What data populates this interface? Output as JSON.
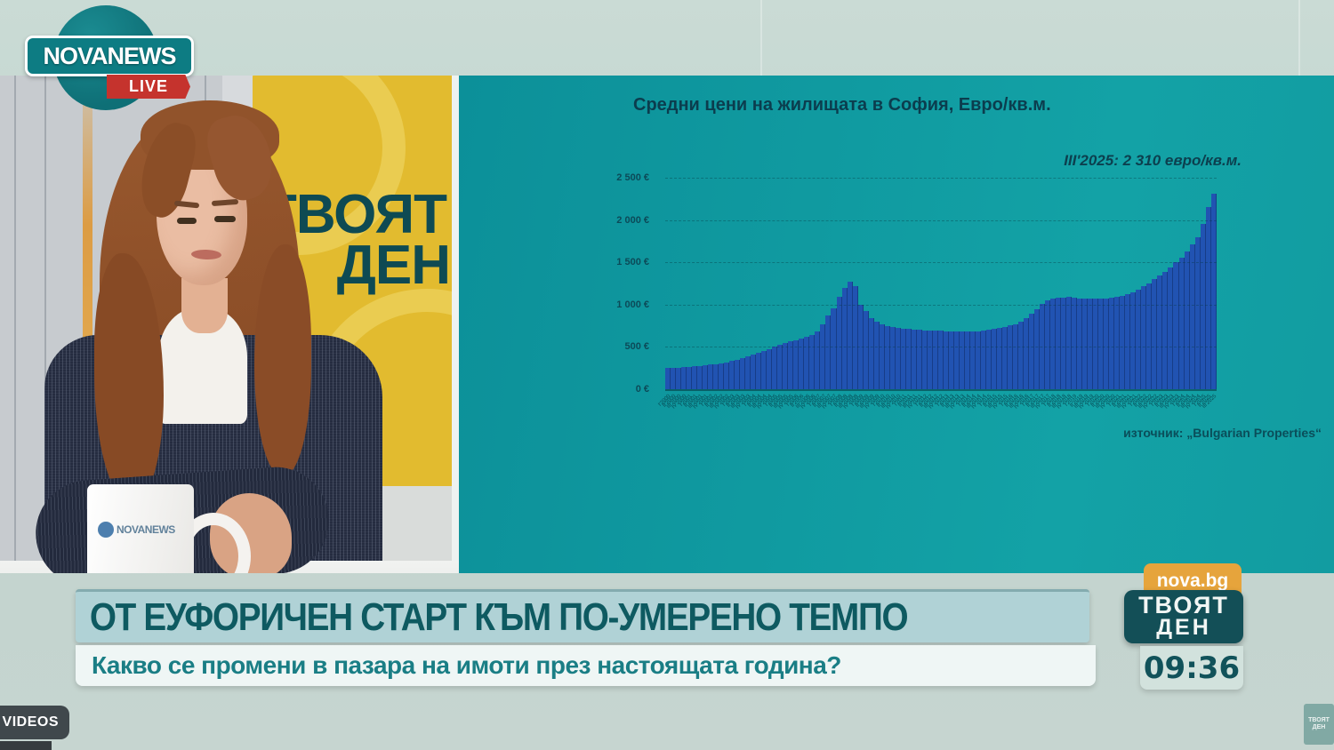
{
  "branding": {
    "logo_text": "NOVANEWS",
    "live_label": "LIVE",
    "mug_logo_text": "NOVANEWS"
  },
  "studio": {
    "wall_logo_line1": "ТВОЯТ",
    "wall_logo_line2": "ДЕН"
  },
  "chart": {
    "title": "Средни цени на жилищата в София, Евро/кв.м.",
    "annotation": "III'2025: 2 310 евро/кв.м.",
    "source": "източник: „Bulgarian Properties“",
    "y_ticks": [
      "2 500 €",
      "2 000 €",
      "1 500 €",
      "1 000 €",
      "500 €",
      "0 €"
    ]
  },
  "chart_data": {
    "type": "bar",
    "title": "Средни цени на жилищата в София, Евро/кв.м.",
    "unit": "EUR per sq.m",
    "ylim": [
      0,
      2500
    ],
    "grid": true,
    "bar_color": "#2153b2",
    "annotation": "III'2025: 2 310 евро/кв.м.",
    "source": "източник: „Bulgarian Properties“",
    "categories": [
      "I'2000",
      "II'2000",
      "III'2000",
      "IV'2000",
      "I'2001",
      "II'2001",
      "III'2001",
      "IV'2001",
      "I'2002",
      "II'2002",
      "III'2002",
      "IV'2002",
      "I'2003",
      "II'2003",
      "III'2003",
      "IV'2003",
      "I'2004",
      "II'2004",
      "III'2004",
      "IV'2004",
      "I'2005",
      "II'2005",
      "III'2005",
      "IV'2005",
      "I'2006",
      "II'2006",
      "III'2006",
      "IV'2006",
      "I'2007",
      "II'2007",
      "III'2007",
      "IV'2007",
      "I'2008",
      "II'2008",
      "III'2008",
      "IV'2008",
      "I'2009",
      "II'2009",
      "III'2009",
      "IV'2009",
      "I'2010",
      "II'2010",
      "III'2010",
      "IV'2010",
      "I'2011",
      "II'2011",
      "III'2011",
      "IV'2011",
      "I'2012",
      "II'2012",
      "III'2012",
      "IV'2012",
      "I'2013",
      "II'2013",
      "III'2013",
      "IV'2013",
      "I'2014",
      "II'2014",
      "III'2014",
      "IV'2014",
      "I'2015",
      "II'2015",
      "III'2015",
      "IV'2015",
      "I'2016",
      "II'2016",
      "III'2016",
      "IV'2016",
      "I'2017",
      "II'2017",
      "III'2017",
      "IV'2017",
      "I'2018",
      "II'2018",
      "III'2018",
      "IV'2018",
      "I'2019",
      "II'2019",
      "III'2019",
      "IV'2019",
      "I'2020",
      "II'2020",
      "III'2020",
      "IV'2020",
      "I'2021",
      "II'2021",
      "III'2021",
      "IV'2021",
      "I'2022",
      "II'2022",
      "III'2022",
      "IV'2022",
      "I'2023",
      "II'2023",
      "III'2023",
      "IV'2023",
      "I'2024",
      "II'2024",
      "III'2024",
      "IV'2024",
      "I'2025",
      "II'2025",
      "III'2025"
    ],
    "values": [
      250,
      252,
      256,
      262,
      268,
      272,
      276,
      282,
      290,
      298,
      308,
      320,
      335,
      350,
      368,
      388,
      408,
      430,
      452,
      478,
      505,
      528,
      548,
      565,
      580,
      595,
      615,
      645,
      685,
      770,
      875,
      960,
      1090,
      1195,
      1270,
      1215,
      1000,
      925,
      845,
      800,
      770,
      750,
      735,
      722,
      715,
      710,
      706,
      702,
      698,
      694,
      691,
      689,
      686,
      684,
      682,
      681,
      680,
      682,
      686,
      692,
      700,
      710,
      722,
      736,
      752,
      770,
      800,
      840,
      890,
      950,
      1010,
      1050,
      1070,
      1080,
      1085,
      1088,
      1080,
      1075,
      1072,
      1070,
      1068,
      1070,
      1075,
      1082,
      1090,
      1105,
      1125,
      1150,
      1180,
      1215,
      1255,
      1300,
      1340,
      1390,
      1440,
      1500,
      1560,
      1630,
      1710,
      1800,
      1950,
      2150,
      2310
    ]
  },
  "lower_third": {
    "headline": "ОТ ЕУФОРИЧЕН СТАРТ КЪМ ПО-УМЕРЕНО ТЕМПО",
    "subtitle": "Какво се промени в пазара на имоти през настоящата година?"
  },
  "badges": {
    "site": "nova.bg",
    "show_line1": "ТВОЯТ",
    "show_line2": "ДЕН",
    "clock": "09:36",
    "more_videos": "E VIDEOS",
    "watermark_line1": "ТВОЯТ",
    "watermark_line2": "ДЕН"
  },
  "colors": {
    "panel_teal": "#10989f",
    "bar_blue": "#2153b2",
    "accent_orange": "#e6a43c",
    "dark_teal_badge": "#134f57",
    "headline_text": "#0e5a61",
    "yellow_panel": "#e2bb2f",
    "live_red": "#c5332d"
  }
}
